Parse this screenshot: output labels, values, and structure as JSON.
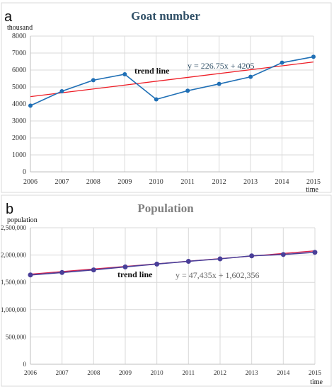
{
  "chart_data": [
    {
      "panel": "a",
      "type": "line",
      "title": "Goat number",
      "ylabel": "thousand",
      "xlabel": "time",
      "x": [
        2006,
        2007,
        2008,
        2009,
        2010,
        2011,
        2012,
        2013,
        2014,
        2015
      ],
      "yticks": [
        "0",
        "1000",
        "2000",
        "3000",
        "4000",
        "5000",
        "6000",
        "7000",
        "8000"
      ],
      "ylim": [
        0,
        8000
      ],
      "grid": true,
      "series": [
        {
          "values": [
            3900,
            4750,
            5400,
            5750,
            4270,
            4780,
            5180,
            5600,
            6430,
            6780
          ],
          "color": "#1f6fb5"
        }
      ],
      "trendline": {
        "label": "trend line",
        "equation": "y = 226.75x + 4205",
        "slope": 226.75,
        "intercept": 4205,
        "color": "#ee1c25"
      },
      "title_color": "#2f4f66"
    },
    {
      "panel": "b",
      "type": "line",
      "title": "Population",
      "ylabel": "population",
      "xlabel": "time",
      "x": [
        2006,
        2007,
        2008,
        2009,
        2010,
        2011,
        2012,
        2013,
        2014,
        2015
      ],
      "yticks": [
        "0",
        "500,000",
        "1,000,000",
        "1,500,000",
        "2,000,000",
        "2,500,000"
      ],
      "ylim": [
        0,
        2500000
      ],
      "grid": true,
      "series": [
        {
          "values": [
            1635000,
            1680000,
            1728000,
            1783000,
            1835000,
            1885000,
            1930000,
            1985000,
            2010000,
            2050000
          ],
          "color": "#4a3f99"
        }
      ],
      "trendline": {
        "label": "trend line",
        "equation": "y = 47,435x + 1,602,356",
        "slope": 47435,
        "intercept": 1602356,
        "color": "#d9234d"
      },
      "title_color": "#7f7f7f"
    }
  ]
}
